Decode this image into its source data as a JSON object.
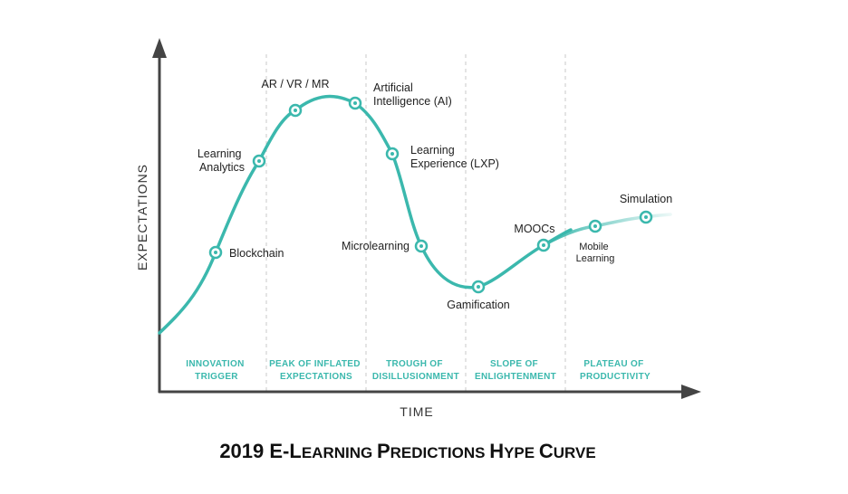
{
  "colors": {
    "accent": "#3bb8ad",
    "axis": "#444444",
    "divider": "#c8c8c8",
    "text": "#222222"
  },
  "axes": {
    "y_label": "EXPECTATIONS",
    "x_label": "TIME"
  },
  "phases": [
    {
      "lines": [
        "INNOVATION",
        "TRIGGER"
      ]
    },
    {
      "lines": [
        "PEAK OF INFLATED",
        "EXPECTATIONS"
      ]
    },
    {
      "lines": [
        "TROUGH OF",
        "DISILLUSIONMENT"
      ]
    },
    {
      "lines": [
        "SLOPE OF",
        "ENLIGHTENMENT"
      ]
    },
    {
      "lines": [
        "PLATEAU OF",
        "PRODUCTIVITY"
      ]
    }
  ],
  "technologies": [
    {
      "lines": [
        "Blockchain"
      ]
    },
    {
      "lines": [
        "Learning",
        "Analytics"
      ]
    },
    {
      "lines": [
        "AR / VR / MR"
      ]
    },
    {
      "lines": [
        "Artificial",
        "Intelligence (AI)"
      ]
    },
    {
      "lines": [
        "Learning",
        "Experience (LXP)"
      ]
    },
    {
      "lines": [
        "Microlearning"
      ]
    },
    {
      "lines": [
        "Gamification"
      ]
    },
    {
      "lines": [
        "MOOCs"
      ]
    },
    {
      "lines": [
        "Mobile",
        "Learning"
      ]
    },
    {
      "lines": [
        "Simulation"
      ]
    }
  ],
  "title": {
    "year": "2019 E-",
    "w1_cap": "L",
    "w1_rest": "EARNING ",
    "w2_cap": "P",
    "w2_rest": "REDICTIONS ",
    "w3_cap": "H",
    "w3_rest": "YPE ",
    "w4_cap": "C",
    "w4_rest": "URVE"
  }
}
